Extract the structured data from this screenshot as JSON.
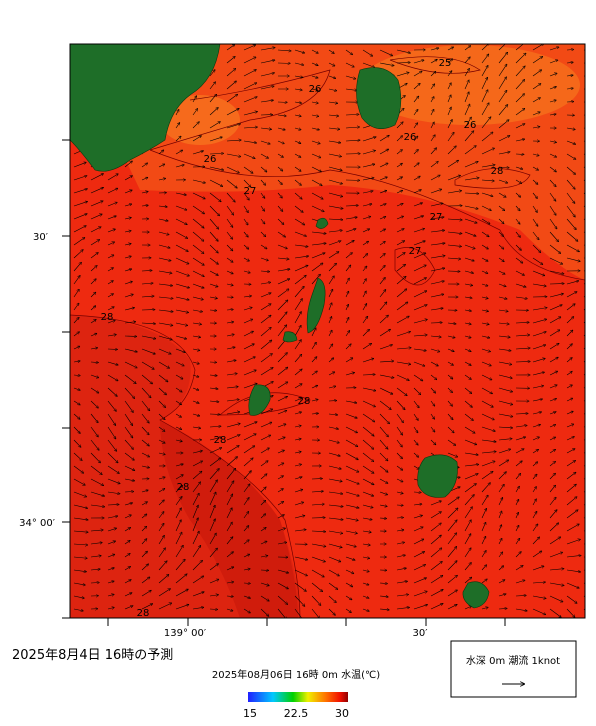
{
  "header": {
    "title": "2025年8月4日 16時の予測"
  },
  "map": {
    "lat_labels": [
      "30′",
      "34° 00′"
    ],
    "lon_labels": [
      "139° 00′",
      "30′"
    ],
    "contour_labels": [
      25,
      26,
      26,
      26,
      26,
      27,
      27,
      27,
      28,
      28,
      28,
      28,
      28,
      28
    ]
  },
  "colorbar": {
    "title": "2025年08月06日 16時 0m 水温(℃)",
    "ticks": [
      15,
      22.5,
      30
    ]
  },
  "legend": {
    "label": "水深 0m 潮流 1knot"
  }
}
